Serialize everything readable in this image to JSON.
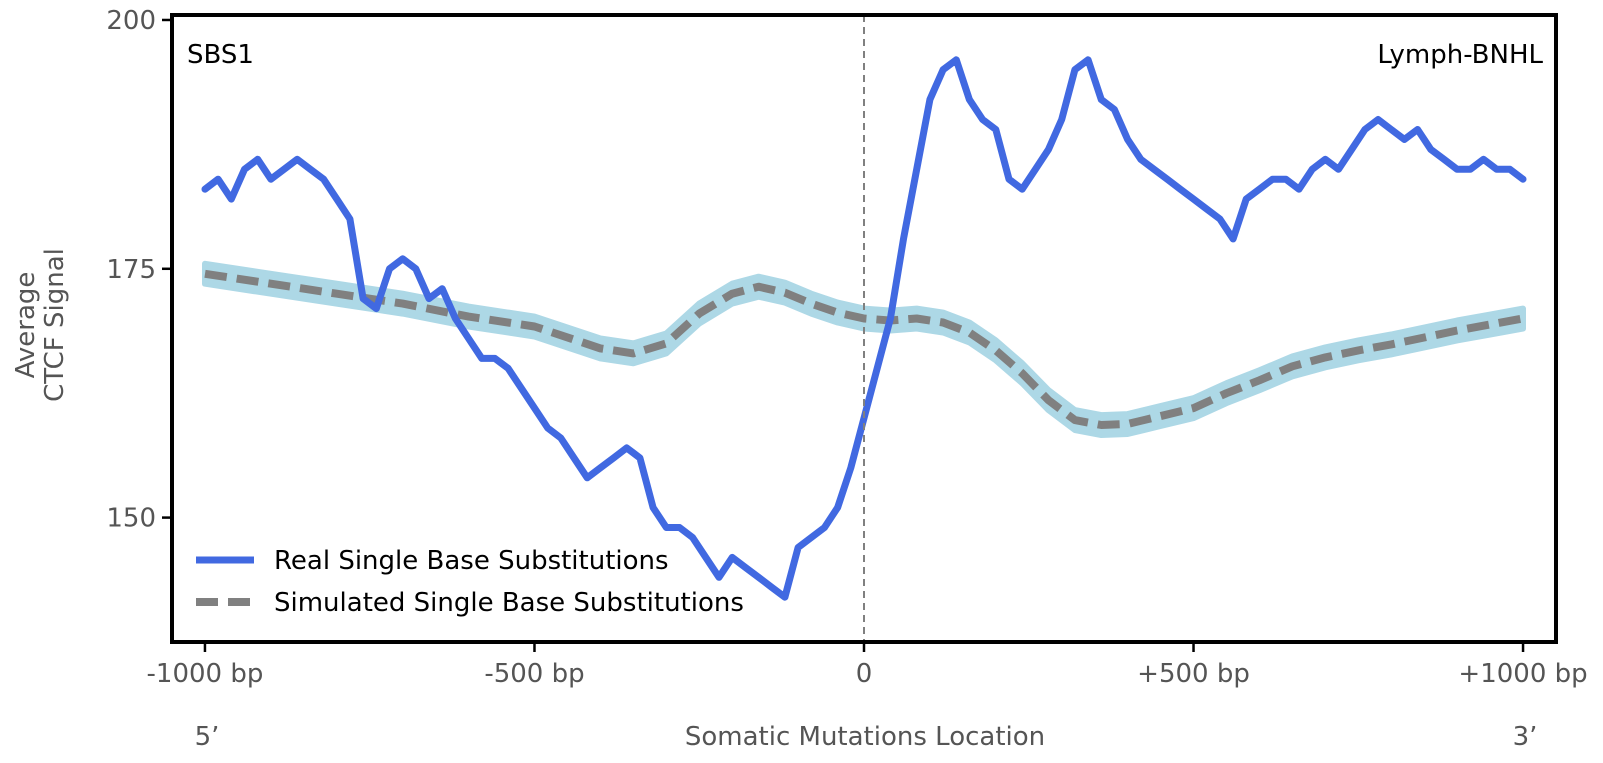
{
  "chart_data": {
    "type": "line",
    "title": "",
    "panel_label_left": "SBS1",
    "panel_label_right": "Lymph-BNHL",
    "xlabel": "Somatic Mutations Location",
    "ylabel_line1": "Average",
    "ylabel_line2": "CTCF Signal",
    "xlim": [
      -1050,
      1050
    ],
    "ylim": [
      137.5,
      200.5
    ],
    "x_ticks": [
      {
        "value": -1000,
        "label": "-1000 bp"
      },
      {
        "value": -500,
        "label": "-500 bp"
      },
      {
        "value": 0,
        "label": "0"
      },
      {
        "value": 500,
        "label": "+500 bp"
      },
      {
        "value": 1000,
        "label": "+1000 bp"
      }
    ],
    "y_ticks": [
      {
        "value": 150,
        "label": "150"
      },
      {
        "value": 175,
        "label": "175"
      },
      {
        "value": 200,
        "label": "200"
      }
    ],
    "end_labels": {
      "left": "5’",
      "right": "3’"
    },
    "center_line_x": 0,
    "legend_position": "lower-left",
    "series": [
      {
        "name": "Real Single Base Substitutions",
        "color": "#4169E1",
        "style": "solid",
        "x": [
          -1000,
          -980,
          -960,
          -940,
          -920,
          -900,
          -880,
          -860,
          -840,
          -820,
          -800,
          -780,
          -760,
          -740,
          -720,
          -700,
          -680,
          -660,
          -640,
          -620,
          -600,
          -580,
          -560,
          -540,
          -520,
          -500,
          -480,
          -460,
          -440,
          -420,
          -400,
          -380,
          -360,
          -340,
          -320,
          -300,
          -280,
          -260,
          -240,
          -220,
          -200,
          -180,
          -160,
          -140,
          -120,
          -100,
          -80,
          -60,
          -40,
          -20,
          0,
          20,
          40,
          60,
          80,
          100,
          120,
          140,
          160,
          180,
          200,
          220,
          240,
          260,
          280,
          300,
          320,
          340,
          360,
          380,
          400,
          420,
          440,
          460,
          480,
          500,
          520,
          540,
          560,
          580,
          600,
          620,
          640,
          660,
          680,
          700,
          720,
          740,
          760,
          780,
          800,
          820,
          840,
          860,
          880,
          900,
          920,
          940,
          960,
          980,
          1000
        ],
        "values": [
          183,
          184,
          182,
          185,
          186,
          184,
          185,
          186,
          185,
          184,
          182,
          180,
          172,
          171,
          175,
          176,
          175,
          172,
          173,
          170,
          168,
          166,
          166,
          165,
          163,
          161,
          159,
          158,
          156,
          154,
          155,
          156,
          157,
          156,
          151,
          149,
          149,
          148,
          146,
          144,
          146,
          145,
          144,
          143,
          142,
          147,
          148,
          149,
          151,
          155,
          160,
          165,
          170,
          178,
          185,
          192,
          195,
          196,
          192,
          190,
          189,
          184,
          183,
          185,
          187,
          190,
          195,
          196,
          192,
          191,
          188,
          186,
          185,
          184,
          183,
          182,
          181,
          180,
          178,
          182,
          183,
          184,
          184,
          183,
          185,
          186,
          185,
          187,
          189,
          190,
          189,
          188,
          189,
          187,
          186,
          185,
          185,
          186,
          185,
          185,
          184
        ]
      },
      {
        "name": "Simulated Single Base Substitutions",
        "color": "#808080",
        "band_color": "#ADD8E6",
        "style": "dashed",
        "x": [
          -1000,
          -900,
          -800,
          -700,
          -600,
          -500,
          -400,
          -350,
          -300,
          -250,
          -200,
          -160,
          -120,
          -80,
          -40,
          0,
          40,
          80,
          120,
          160,
          200,
          240,
          280,
          320,
          360,
          400,
          450,
          500,
          550,
          600,
          650,
          700,
          750,
          800,
          850,
          900,
          950,
          1000
        ],
        "values": [
          174.5,
          173.5,
          172.5,
          171.5,
          170.2,
          169.2,
          167.0,
          166.5,
          167.5,
          170.5,
          172.5,
          173.2,
          172.6,
          171.5,
          170.6,
          170.0,
          169.8,
          170.0,
          169.6,
          168.6,
          166.8,
          164.5,
          161.8,
          159.8,
          159.3,
          159.4,
          160.2,
          161.0,
          162.5,
          163.8,
          165.2,
          166.1,
          166.8,
          167.4,
          168.1,
          168.8,
          169.4,
          170.0
        ],
        "band_halfwidth": 1.0
      }
    ]
  }
}
